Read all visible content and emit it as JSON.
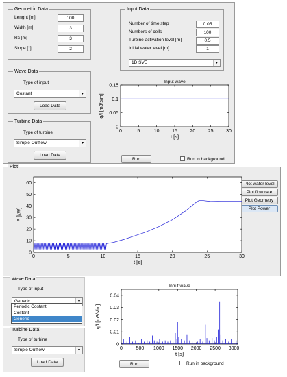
{
  "geometric": {
    "title": "Geometric Data",
    "fields": [
      {
        "label": "Lenght [m]",
        "value": "100"
      },
      {
        "label": "Width [m]",
        "value": "3"
      },
      {
        "label": "Rc [m]",
        "value": "3"
      },
      {
        "label": "Slope [°]",
        "value": "2"
      }
    ]
  },
  "input": {
    "title": "Input Data",
    "fields": [
      {
        "label": "Number of time step",
        "value": "0.05"
      },
      {
        "label": "Numbers of cells",
        "value": "100"
      },
      {
        "label": "Turbine activation level [m]",
        "value": "0.5"
      },
      {
        "label": "Initial water level [m]",
        "value": "1"
      }
    ],
    "model_select": "1D SVE"
  },
  "wave_top": {
    "title": "Wave Data",
    "type_label": "Type of input",
    "selected": "Costant",
    "load_button": "Load Data"
  },
  "turbine_top": {
    "title": "Turbine Data",
    "type_label": "Type of turbine",
    "selected": "Simple Outflow",
    "load_button": "Load Data"
  },
  "run_top": {
    "run_button": "Run",
    "background_label": "Run in background"
  },
  "wave_bottom": {
    "title": "Wave Data",
    "type_label": "Type of input",
    "selected": "Generic",
    "options": [
      "Periodic Costant",
      "Costant",
      "Generic"
    ]
  },
  "turbine_bottom": {
    "title": "Turbine Data",
    "type_label": "Type of turbine",
    "selected": "Simple Outflow",
    "load_button": "Load Data"
  },
  "run_bottom": {
    "run_button": "Run",
    "background_label": "Run in background"
  },
  "plot_panel": {
    "title": "Plot",
    "buttons": [
      "Plot water level",
      "Plot flow rate",
      "Plot Geometry",
      "Plot Power"
    ],
    "active_button": "Plot Power"
  },
  "colors": {
    "line": "#1f1fd8",
    "panel": "#ececec",
    "highlight": "#3f86c9"
  },
  "chart_data": [
    {
      "type": "line",
      "title": "Input wave",
      "xlabel": "t [s]",
      "ylabel": "q/l [m3/s/m]",
      "xlim": [
        0,
        30
      ],
      "ylim": [
        0,
        0.15
      ],
      "xticks": [
        0,
        5,
        10,
        15,
        20,
        25,
        30
      ],
      "yticks": [
        0,
        0.05,
        0.1,
        0.15
      ],
      "ytick_labels": [
        "0",
        "0.05",
        "0.1",
        "0.15"
      ],
      "x": [
        0,
        30
      ],
      "y": [
        0.1,
        0.1
      ]
    },
    {
      "type": "line",
      "title": "",
      "xlabel": "t [s]",
      "ylabel": "P [kW]",
      "xlim": [
        0,
        30
      ],
      "ylim": [
        0,
        65
      ],
      "xticks": [
        0,
        5,
        10,
        15,
        20,
        25,
        30
      ],
      "yticks": [
        0,
        10,
        20,
        30,
        40,
        50,
        60
      ],
      "ytick_labels": [
        "0",
        "10",
        "20",
        "30",
        "40",
        "50",
        "60"
      ],
      "oscillation": {
        "t_start": 0,
        "t_end": 10.5,
        "period": 0.2,
        "low": 2.5,
        "high": 8
      },
      "x": [
        10.5,
        11.5,
        13,
        14.5,
        16,
        18,
        20,
        22,
        23.3,
        23.8,
        24.5,
        25.5,
        27,
        28.5,
        30
      ],
      "y": [
        7.5,
        8.5,
        11,
        14,
        17,
        22,
        28,
        36,
        42.5,
        44.5,
        44.5,
        43.8,
        44,
        44,
        44
      ]
    },
    {
      "type": "line",
      "title": "Input wave",
      "xlabel": "t [s]",
      "ylabel": "q/l [m3/s/m]",
      "xlim": [
        0,
        3100
      ],
      "ylim": [
        0,
        0.045
      ],
      "xticks": [
        0,
        500,
        1000,
        1500,
        2000,
        2500,
        3000
      ],
      "yticks": [
        0,
        0.01,
        0.02,
        0.03,
        0.04
      ],
      "ytick_labels": [
        "0",
        "0.01",
        "0.02",
        "0.03",
        "0.04"
      ],
      "spikes": [
        [
          60,
          0.004
        ],
        [
          150,
          0.002
        ],
        [
          230,
          0.006
        ],
        [
          300,
          0.002
        ],
        [
          380,
          0.003
        ],
        [
          460,
          0.001
        ],
        [
          540,
          0.004
        ],
        [
          610,
          0.002
        ],
        [
          690,
          0.003
        ],
        [
          760,
          0.002
        ],
        [
          830,
          0.007
        ],
        [
          880,
          0.003
        ],
        [
          950,
          0.002
        ],
        [
          1020,
          0.004
        ],
        [
          1100,
          0.002
        ],
        [
          1170,
          0.003
        ],
        [
          1240,
          0.002
        ],
        [
          1310,
          0.003
        ],
        [
          1380,
          0.002
        ],
        [
          1440,
          0.009
        ],
        [
          1480,
          0.004
        ],
        [
          1500,
          0.018
        ],
        [
          1530,
          0.006
        ],
        [
          1600,
          0.004
        ],
        [
          1680,
          0.003
        ],
        [
          1750,
          0.008
        ],
        [
          1820,
          0.003
        ],
        [
          1890,
          0.002
        ],
        [
          1960,
          0.005
        ],
        [
          2030,
          0.002
        ],
        [
          2100,
          0.004
        ],
        [
          2170,
          0.002
        ],
        [
          2240,
          0.016
        ],
        [
          2280,
          0.005
        ],
        [
          2340,
          0.003
        ],
        [
          2420,
          0.005
        ],
        [
          2480,
          0.003
        ],
        [
          2540,
          0.006
        ],
        [
          2580,
          0.012
        ],
        [
          2620,
          0.035
        ],
        [
          2650,
          0.008
        ],
        [
          2700,
          0.003
        ],
        [
          2780,
          0.004
        ],
        [
          2860,
          0.002
        ],
        [
          2930,
          0.004
        ],
        [
          3000,
          0.002
        ],
        [
          3060,
          0.003
        ]
      ]
    }
  ]
}
